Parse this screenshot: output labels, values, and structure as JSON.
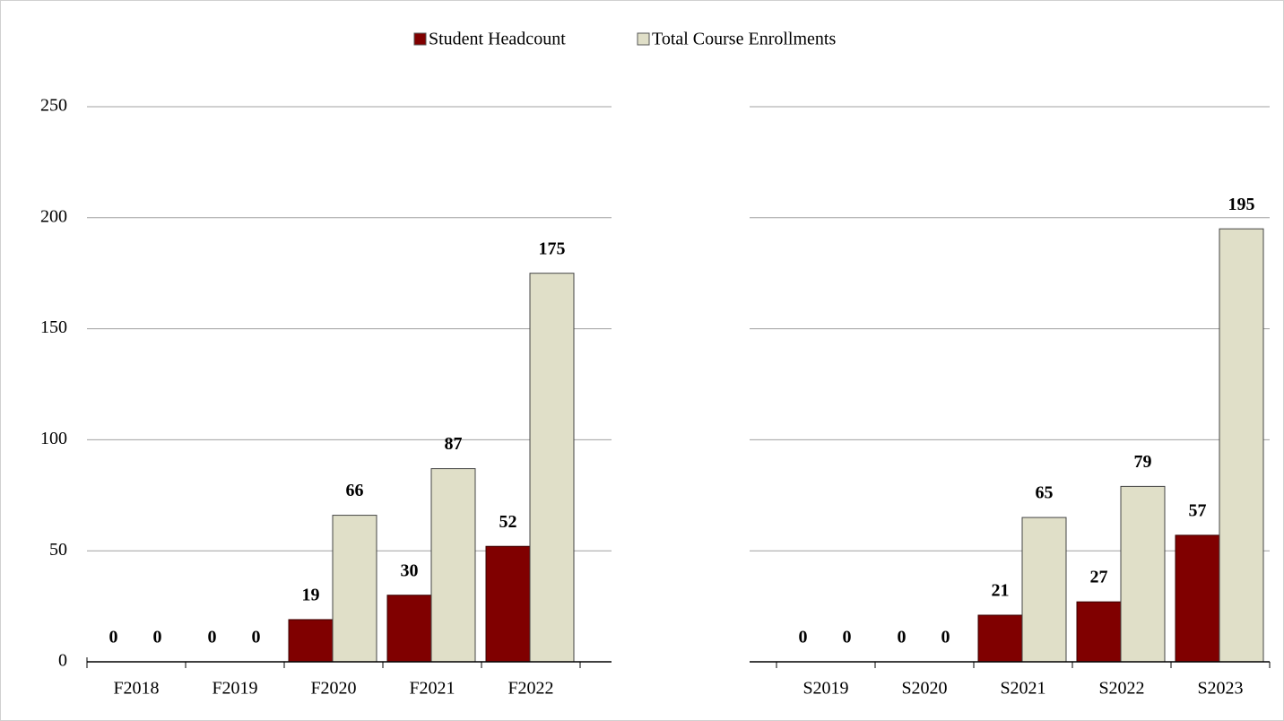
{
  "chart_data": [
    {
      "type": "bar",
      "categories": [
        "F2018",
        "F2019",
        "F2020",
        "F2021",
        "F2022"
      ],
      "series": [
        {
          "name": "Student Headcount",
          "color": "#800000",
          "values": [
            0,
            0,
            19,
            30,
            52
          ]
        },
        {
          "name": "Total Course Enrollments",
          "color": "#e0dfc8",
          "values": [
            0,
            0,
            66,
            87,
            175
          ]
        }
      ],
      "ylim": [
        0,
        250
      ],
      "yticks": [
        0,
        50,
        100,
        150,
        200,
        250
      ],
      "grid": true
    },
    {
      "type": "bar",
      "categories": [
        "S2019",
        "S2020",
        "S2021",
        "S2022",
        "S2023"
      ],
      "series": [
        {
          "color": "#800000",
          "values": [
            0,
            0,
            21,
            27,
            57
          ]
        },
        {
          "color": "#e0dfc8",
          "values": [
            0,
            0,
            65,
            79,
            195
          ]
        }
      ],
      "ylim": [
        0,
        250
      ],
      "yticks": [
        0,
        50,
        100,
        150,
        200,
        250
      ],
      "grid": true
    }
  ]
}
